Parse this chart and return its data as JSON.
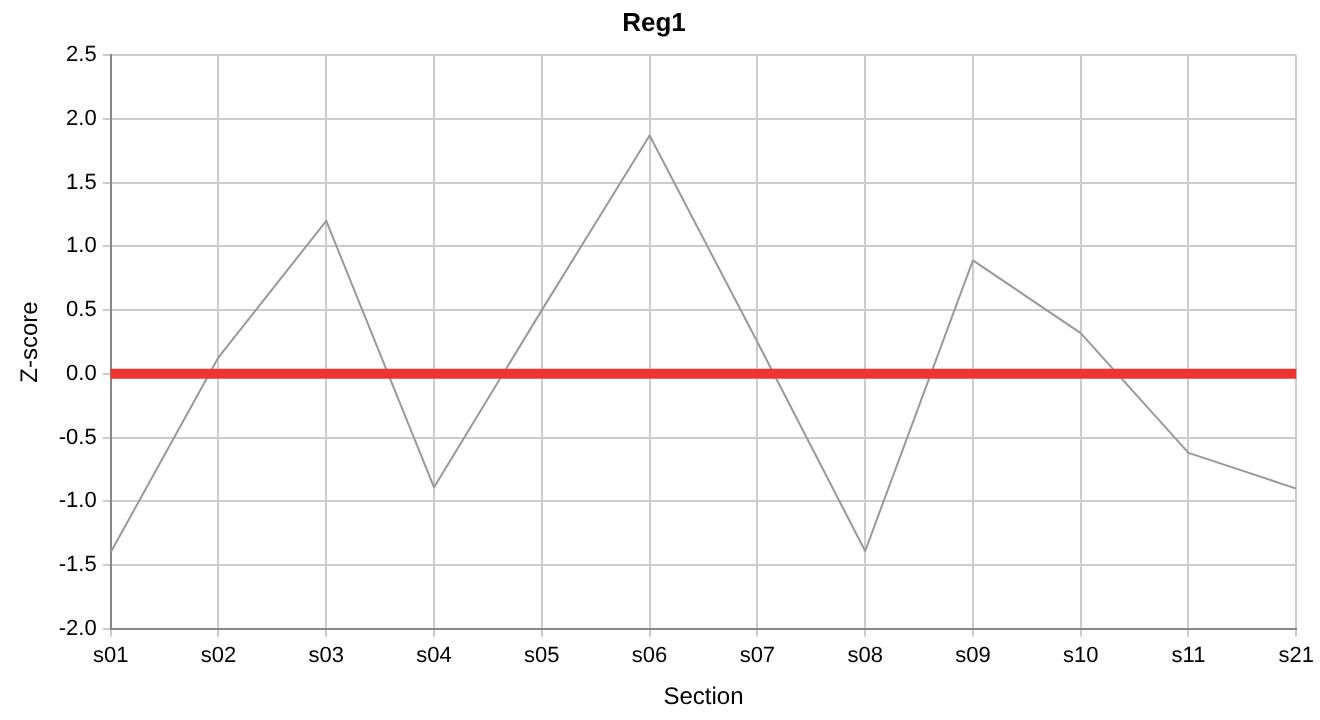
{
  "chart_data": {
    "type": "line",
    "title": "Reg1",
    "xlabel": "Section",
    "ylabel": "Z-score",
    "categories": [
      "s01",
      "s02",
      "s03",
      "s04",
      "s05",
      "s06",
      "s07",
      "s08",
      "s09",
      "s10",
      "s11",
      "s21"
    ],
    "series": [
      {
        "color": "#999999",
        "values": [
          -1.4,
          0.13,
          1.2,
          -0.89,
          0.5,
          1.87,
          0.25,
          -1.39,
          0.89,
          0.32,
          -0.62,
          -0.9
        ]
      }
    ],
    "ylim": [
      -2,
      2.5
    ],
    "yticks": [
      {
        "value": -2,
        "label": "-2.0"
      },
      {
        "value": -1.5,
        "label": "-1.5"
      },
      {
        "value": -1,
        "label": "-1.0"
      },
      {
        "value": -0.5,
        "label": "-0.5"
      },
      {
        "value": 0,
        "label": "0.0"
      },
      {
        "value": 0.5,
        "label": "0.5"
      },
      {
        "value": 1,
        "label": "1.0"
      },
      {
        "value": 1.5,
        "label": "1.5"
      },
      {
        "value": 2,
        "label": "2.0"
      },
      {
        "value": 2.5,
        "label": "2.5"
      }
    ],
    "ref_lines": [
      {
        "axis": "y",
        "value": 0,
        "color": "#ee3333"
      }
    ],
    "grid": true,
    "legend": false,
    "marker": "none",
    "line_style": "solid"
  }
}
